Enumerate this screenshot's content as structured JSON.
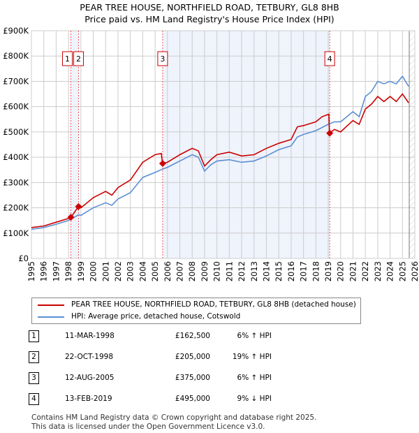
{
  "title": "PEAR TREE HOUSE, NORTHFIELD ROAD, TETBURY, GL8 8HB",
  "subtitle": "Price paid vs. HM Land Registry's House Price Index (HPI)",
  "chart_data": {
    "type": "line",
    "ylim": [
      0,
      900000
    ],
    "xlim": [
      1995,
      2026
    ],
    "yticks": [
      {
        "v": 0,
        "label": "£0"
      },
      {
        "v": 100000,
        "label": "£100K"
      },
      {
        "v": 200000,
        "label": "£200K"
      },
      {
        "v": 300000,
        "label": "£300K"
      },
      {
        "v": 400000,
        "label": "£400K"
      },
      {
        "v": 500000,
        "label": "£500K"
      },
      {
        "v": 600000,
        "label": "£600K"
      },
      {
        "v": 700000,
        "label": "£700K"
      },
      {
        "v": 800000,
        "label": "£800K"
      },
      {
        "v": 900000,
        "label": "£900K"
      }
    ],
    "xticks": [
      "1995",
      "1996",
      "1997",
      "1998",
      "1999",
      "2000",
      "2001",
      "2002",
      "2003",
      "2004",
      "2005",
      "2006",
      "2007",
      "2008",
      "2009",
      "2010",
      "2011",
      "2012",
      "2013",
      "2014",
      "2015",
      "2016",
      "2017",
      "2018",
      "2019",
      "2020",
      "2021",
      "2022",
      "2023",
      "2024",
      "2025",
      "2026"
    ],
    "series": [
      {
        "name": "PEAR TREE HOUSE, NORTHFIELD ROAD, TETBURY, GL8 8HB (detached house)",
        "color": "#cc0000",
        "x": [
          1995,
          1996,
          1997,
          1998,
          1998.2,
          1998.8,
          1999,
          2000,
          2001,
          2001.5,
          2002,
          2003,
          2003.5,
          2004,
          2005,
          2005.5,
          2005.6,
          2006,
          2007,
          2008,
          2008.5,
          2009,
          2009.5,
          2010,
          2011,
          2012,
          2013,
          2014,
          2015,
          2016,
          2016.5,
          2017,
          2018,
          2018.5,
          2019.05,
          2019.1,
          2019.5,
          2020,
          2021,
          2021.5,
          2022,
          2022.5,
          2023,
          2023.5,
          2024,
          2024.5,
          2025,
          2025.5
        ],
        "y": [
          122000,
          128000,
          143000,
          158000,
          162500,
          205000,
          200000,
          240000,
          265000,
          250000,
          280000,
          310000,
          345000,
          380000,
          410000,
          415000,
          375000,
          380000,
          410000,
          435000,
          425000,
          365000,
          390000,
          410000,
          420000,
          405000,
          410000,
          435000,
          455000,
          470000,
          520000,
          525000,
          540000,
          560000,
          570000,
          495000,
          510000,
          500000,
          545000,
          530000,
          590000,
          610000,
          640000,
          620000,
          640000,
          620000,
          650000,
          615000
        ]
      },
      {
        "name": "HPI: Average price, detached house, Cotswold",
        "color": "#5b8fd4",
        "x": [
          1995,
          1996,
          1997,
          1998,
          1998.8,
          1999,
          2000,
          2001,
          2001.5,
          2002,
          2003,
          2003.5,
          2004,
          2005,
          2005.6,
          2006,
          2007,
          2008,
          2008.5,
          2009,
          2009.5,
          2010,
          2011,
          2012,
          2013,
          2014,
          2015,
          2016,
          2016.5,
          2017,
          2018,
          2019,
          2019.5,
          2020,
          2021,
          2021.5,
          2022,
          2022.5,
          2023,
          2023.5,
          2024,
          2024.5,
          2025,
          2025.5
        ],
        "y": [
          115000,
          122000,
          135000,
          150000,
          172000,
          170000,
          200000,
          220000,
          210000,
          235000,
          260000,
          290000,
          320000,
          340000,
          353000,
          360000,
          385000,
          410000,
          400000,
          345000,
          370000,
          385000,
          390000,
          380000,
          385000,
          405000,
          430000,
          445000,
          480000,
          490000,
          505000,
          530000,
          540000,
          540000,
          580000,
          560000,
          640000,
          660000,
          700000,
          690000,
          700000,
          690000,
          720000,
          680000
        ]
      }
    ],
    "sales": [
      {
        "n": "1",
        "x": 1998.19,
        "y": 162500
      },
      {
        "n": "2",
        "x": 1998.81,
        "y": 205000
      },
      {
        "n": "3",
        "x": 2005.61,
        "y": 375000
      },
      {
        "n": "4",
        "x": 2019.12,
        "y": 495000
      }
    ]
  },
  "legend": {
    "red": "PEAR TREE HOUSE, NORTHFIELD ROAD, TETBURY, GL8 8HB (detached house)",
    "blue": "HPI: Average price, detached house, Cotswold"
  },
  "rows": [
    {
      "n": "1",
      "date": "11-MAR-1998",
      "price": "£162,500",
      "hpi": "6% ↑ HPI"
    },
    {
      "n": "2",
      "date": "22-OCT-1998",
      "price": "£205,000",
      "hpi": "19% ↑ HPI"
    },
    {
      "n": "3",
      "date": "12-AUG-2005",
      "price": "£375,000",
      "hpi": "6% ↑ HPI"
    },
    {
      "n": "4",
      "date": "13-FEB-2019",
      "price": "£495,000",
      "hpi": "9% ↓ HPI"
    }
  ],
  "footer": [
    "Contains HM Land Registry data © Crown copyright and database right 2025.",
    "This data is licensed under the Open Government Licence v3.0."
  ]
}
